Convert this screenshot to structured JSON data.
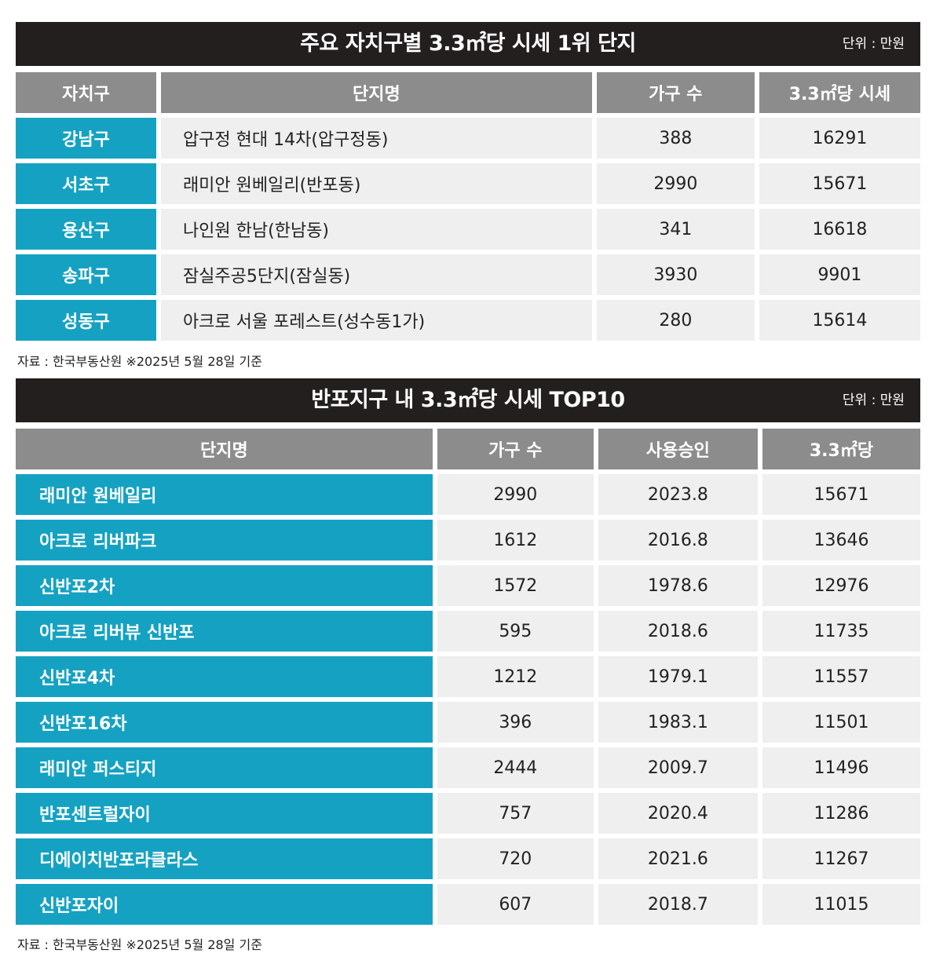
{
  "table1": {
    "title": "주요 자치구별 3.3㎡당 시세 1위 단지",
    "unit": "단위 : 만원",
    "headers": [
      "자치구",
      "단지명",
      "가구 수",
      "3.3㎡당 시세"
    ],
    "rows": [
      [
        "강남구",
        "압구정 현대 14차(압구정동)",
        "388",
        "16291"
      ],
      [
        "서초구",
        "래미안 원베일리(반포동)",
        "2990",
        "15671"
      ],
      [
        "용산구",
        "나인원 한남(한남동)",
        "341",
        "16618"
      ],
      [
        "송파구",
        "잠실주공5단지(잠실동)",
        "3930",
        "9901"
      ],
      [
        "성동구",
        "아크로 서울 포레스트(성수동1가)",
        "280",
        "15614"
      ]
    ],
    "source": "자료 : 한국부동산원 ※2025년 5월 28일 기준"
  },
  "table2": {
    "title": "반포지구 내 3.3㎡당 시세 TOP10",
    "unit": "단위 : 만원",
    "headers": [
      "단지명",
      "가구 수",
      "사용승인",
      "3.3㎡당"
    ],
    "rows": [
      [
        "래미안 원베일리",
        "2990",
        "2023.8",
        "15671"
      ],
      [
        "아크로 리버파크",
        "1612",
        "2016.8",
        "13646"
      ],
      [
        "신반포2차",
        "1572",
        "1978.6",
        "12976"
      ],
      [
        "아크로 리버뷰 신반포",
        "595",
        "2018.6",
        "11735"
      ],
      [
        "신반포4차",
        "1212",
        "1979.1",
        "11557"
      ],
      [
        "신반포16차",
        "396",
        "1983.1",
        "11501"
      ],
      [
        "래미안 퍼스티지",
        "2444",
        "2009.7",
        "11496"
      ],
      [
        "반포센트럴자이",
        "757",
        "2020.4",
        "11286"
      ],
      [
        "디에이치반포라클라스",
        "720",
        "2021.6",
        "11267"
      ],
      [
        "신반포자이",
        "607",
        "2018.7",
        "11015"
      ]
    ],
    "source": "자료 : 한국부동산원 ※2025년 5월 28일 기준"
  }
}
